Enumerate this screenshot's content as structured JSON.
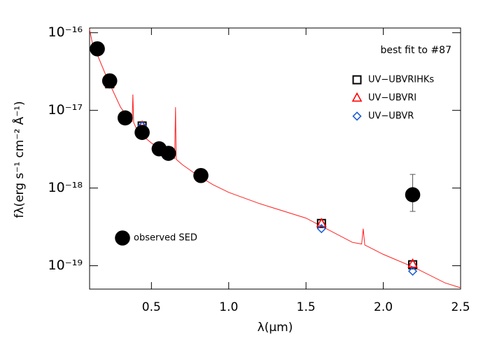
{
  "chart_data": {
    "type": "scatter",
    "title": "best fit to #87",
    "x_label": "λ(μm)",
    "y_label": "fλ(erg s⁻¹ cm⁻² Å⁻¹)",
    "ylog": true,
    "legend": "upper right",
    "xlim": [
      0.1,
      2.5
    ],
    "ylim": [
      5e-20,
      1.15e-16
    ],
    "xticks": [
      0.5,
      {
        "value": 1,
        "label": "1.0"
      },
      1.5,
      {
        "value": 2,
        "label": "2.0"
      },
      2.5
    ],
    "yticks": [
      {
        "value": 1e-16,
        "label": "10⁻¹⁶"
      },
      {
        "value": 1e-17,
        "label": "10⁻¹⁷"
      },
      {
        "value": 1e-18,
        "label": "10⁻¹⁸"
      },
      {
        "value": 1e-19,
        "label": "10⁻¹⁹"
      }
    ],
    "series": [
      {
        "marker": "line",
        "color": "#ff2020",
        "x": [
          0.1,
          0.12,
          0.15,
          0.2,
          0.25,
          0.3,
          0.35,
          0.375,
          0.38,
          0.385,
          0.4,
          0.45,
          0.5,
          0.6,
          0.65,
          0.656,
          0.66,
          0.7,
          0.8,
          0.9,
          1.0,
          1.2,
          1.5,
          1.8,
          1.86,
          1.87,
          1.88,
          2.0,
          2.2,
          2.4,
          2.5
        ],
        "values": [
          1.1e-16,
          7e-17,
          5.2e-17,
          3e-17,
          1.8e-17,
          1.1e-17,
          8e-18,
          7.2e-18,
          1.6e-17,
          7e-18,
          6e-18,
          4.6e-18,
          3.8e-18,
          2.8e-18,
          2.4e-18,
          1.1e-17,
          2.35e-18,
          2e-18,
          1.45e-18,
          1.1e-18,
          8.8e-19,
          6.3e-19,
          4.1e-19,
          2e-19,
          1.9e-19,
          3e-19,
          1.85e-19,
          1.4e-19,
          9.5e-20,
          6e-20,
          5.2e-20
        ]
      },
      {
        "name": "UV−UBVRIHKs",
        "marker": "square",
        "color": "#000000",
        "x": [
          0.15,
          0.23,
          0.33,
          0.44,
          0.55,
          0.61,
          0.82,
          1.6,
          2.19
        ],
        "values": [
          5.9e-17,
          2.2e-17,
          8e-18,
          6.3e-18,
          3.2e-18,
          2.8e-18,
          1.4e-18,
          3.5e-19,
          1.03e-19
        ]
      },
      {
        "name": "UV−UBVRI",
        "marker": "triangle",
        "color": "#ff0000",
        "x": [
          0.15,
          0.23,
          0.33,
          0.44,
          0.55,
          0.61,
          0.82,
          1.6,
          2.19
        ],
        "values": [
          5.9e-17,
          2.2e-17,
          8e-18,
          6.3e-18,
          3.2e-18,
          2.8e-18,
          1.4e-18,
          3.5e-19,
          1.05e-19
        ]
      },
      {
        "name": "UV−UBVR",
        "marker": "diamond",
        "color": "#1f5fd6",
        "x": [
          0.15,
          0.23,
          0.33,
          0.44,
          0.55,
          0.61,
          0.82,
          1.6,
          2.19
        ],
        "values": [
          5.9e-17,
          2.2e-17,
          8e-18,
          6.3e-18,
          3.2e-18,
          2.8e-18,
          1.35e-18,
          3e-19,
          8.5e-20
        ]
      },
      {
        "name": "observed SED",
        "marker": "circle",
        "color": "#000000",
        "x": [
          0.15,
          0.23,
          0.33,
          0.44,
          0.55,
          0.61,
          0.82,
          2.19
        ],
        "values": [
          6.2e-17,
          2.4e-17,
          8e-18,
          5.2e-18,
          3.2e-18,
          2.8e-18,
          1.45e-18,
          8.2e-19
        ],
        "yerr_minus": [
          null,
          null,
          null,
          null,
          null,
          null,
          null,
          3.2e-19
        ],
        "yerr_plus": [
          null,
          null,
          null,
          null,
          null,
          null,
          null,
          6.8e-19
        ]
      }
    ]
  }
}
